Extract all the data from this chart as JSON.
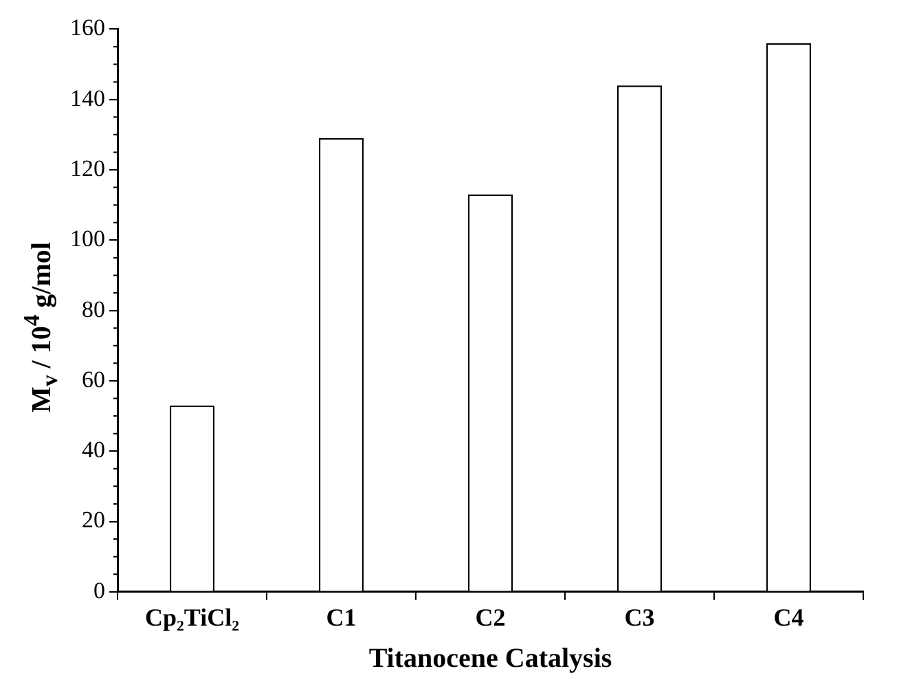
{
  "chart_data": {
    "type": "bar",
    "xlabel": "Titanocene Catalysis",
    "ylabel": "M$_{v}$ / 10$^{4}$ g/mol",
    "categories": [
      "Cp₂TiCl₂",
      "C1",
      "C2",
      "C3",
      "C4"
    ],
    "values": [
      53,
      129,
      113,
      144,
      156
    ],
    "color": "#ffffff",
    "ylim": [
      0,
      160
    ],
    "yticks": [
      0,
      20,
      40,
      60,
      80,
      100,
      120,
      140,
      160
    ],
    "grid": false,
    "legend": false
  }
}
